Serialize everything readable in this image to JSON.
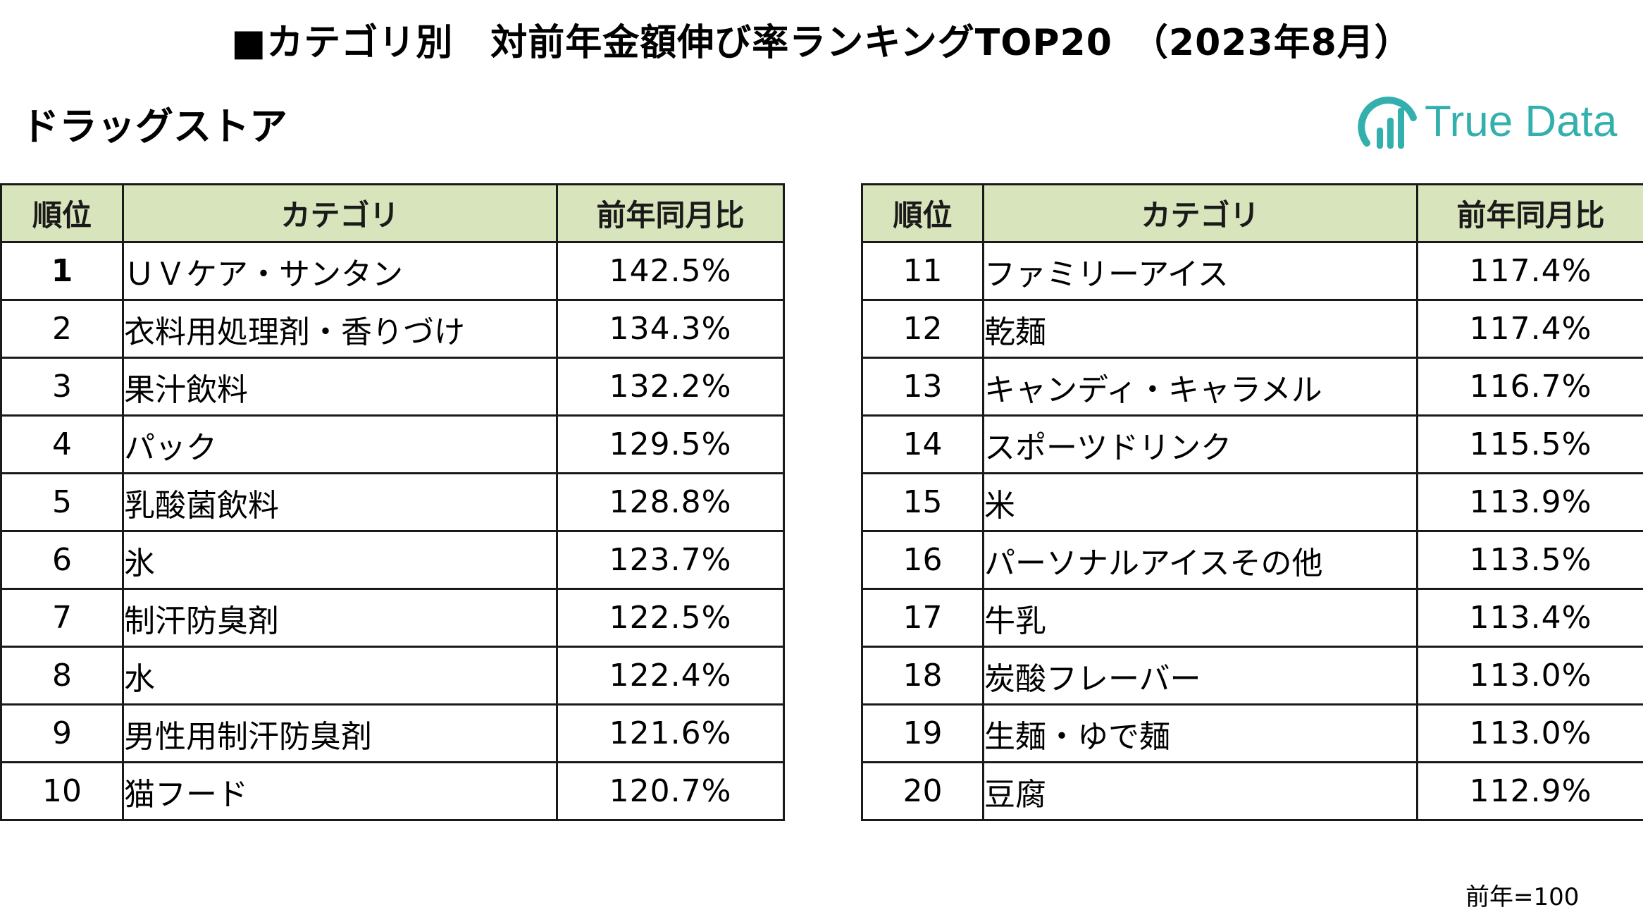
{
  "title": "■カテゴリ別　対前年金額伸び率ランキングTOP20　（2023年8月）",
  "subtitle": "ドラッグストア",
  "logo": {
    "text": "True Data",
    "icon": "bar-chart-circle-icon",
    "color": "#33B0AE"
  },
  "table": {
    "headers": {
      "rank": "順位",
      "category": "カテゴリ",
      "yoy": "前年同月比"
    },
    "header_bg": "#D8E4BC",
    "left_rows": [
      {
        "rank": "1",
        "category": "ＵＶケア・サンタン",
        "yoy": "142.5%"
      },
      {
        "rank": "2",
        "category": "衣料用処理剤・香りづけ",
        "yoy": "134.3%"
      },
      {
        "rank": "3",
        "category": "果汁飲料",
        "yoy": "132.2%"
      },
      {
        "rank": "4",
        "category": "パック",
        "yoy": "129.5%"
      },
      {
        "rank": "5",
        "category": "乳酸菌飲料",
        "yoy": "128.8%"
      },
      {
        "rank": "6",
        "category": "氷",
        "yoy": "123.7%"
      },
      {
        "rank": "7",
        "category": "制汗防臭剤",
        "yoy": "122.5%"
      },
      {
        "rank": "8",
        "category": "水",
        "yoy": "122.4%"
      },
      {
        "rank": "9",
        "category": "男性用制汗防臭剤",
        "yoy": "121.6%"
      },
      {
        "rank": "10",
        "category": "猫フード",
        "yoy": "120.7%"
      }
    ],
    "right_rows": [
      {
        "rank": "11",
        "category": "ファミリーアイス",
        "yoy": "117.4%"
      },
      {
        "rank": "12",
        "category": "乾麺",
        "yoy": "117.4%"
      },
      {
        "rank": "13",
        "category": "キャンディ・キャラメル",
        "yoy": "116.7%"
      },
      {
        "rank": "14",
        "category": "スポーツドリンク",
        "yoy": "115.5%"
      },
      {
        "rank": "15",
        "category": "米",
        "yoy": "113.9%"
      },
      {
        "rank": "16",
        "category": "パーソナルアイスその他",
        "yoy": "113.5%"
      },
      {
        "rank": "17",
        "category": "牛乳",
        "yoy": "113.4%"
      },
      {
        "rank": "18",
        "category": "炭酸フレーバー",
        "yoy": "113.0%"
      },
      {
        "rank": "19",
        "category": "生麺・ゆで麺",
        "yoy": "113.0%"
      },
      {
        "rank": "20",
        "category": "豆腐",
        "yoy": "112.9%"
      }
    ]
  },
  "footnote": "前年=100"
}
